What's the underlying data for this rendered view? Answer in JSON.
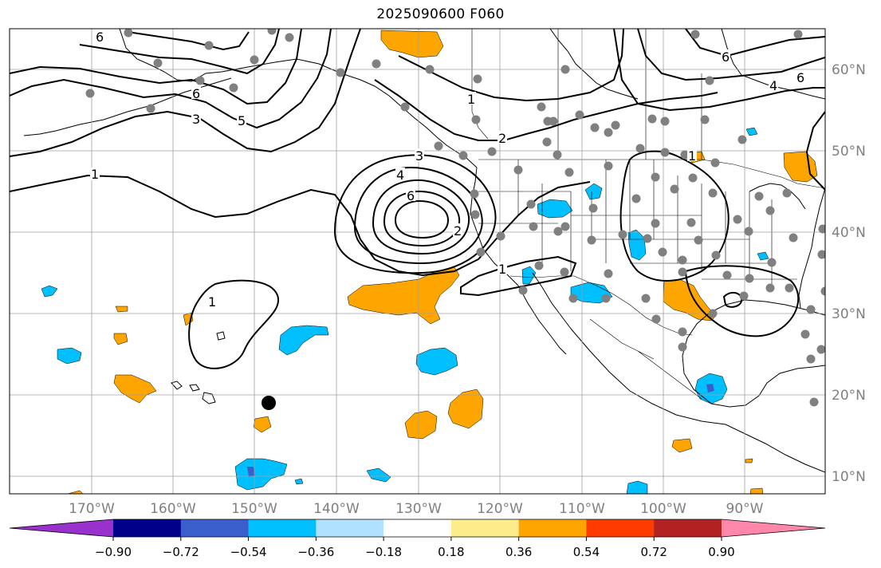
{
  "title": "2025090600 F060",
  "map": {
    "projection": "PlateCarree",
    "lon_range": [
      -178,
      -78
    ],
    "lat_range": [
      8,
      65
    ],
    "grid": true,
    "lon_ticks": [
      "170°W",
      "160°W",
      "150°W",
      "140°W",
      "130°W",
      "120°W",
      "110°W",
      "100°W",
      "90°W"
    ],
    "lat_ticks": [
      "60°N",
      "50°N",
      "40°N",
      "30°N",
      "20°N",
      "10°N"
    ],
    "contour_labels": [
      "1",
      "3",
      "5",
      "6",
      "6",
      "1",
      "2",
      "3",
      "4",
      "6",
      "2",
      "1",
      "1",
      "1",
      "6",
      "4",
      "6"
    ],
    "colors": {
      "positive_shade": "#ffa500",
      "negative_shade": "#00bfff",
      "strong_negative_shade": "#3a5fcd",
      "station_dot": "#808080",
      "contour": "#000000",
      "grid": "#a0a0a0"
    },
    "marker_icon": "black-dot-marker"
  },
  "colorbar": {
    "colors": [
      "#9932cc",
      "#00008b",
      "#3a5fcd",
      "#00bfff",
      "#b0e2ff",
      "#ffffff",
      "#fdec8a",
      "#ffa500",
      "#ff3c00",
      "#b22222",
      "#ff88aa"
    ],
    "tick_labels": [
      "−0.90",
      "−0.72",
      "−0.54",
      "−0.36",
      "−0.18",
      "0.18",
      "0.36",
      "0.54",
      "0.72",
      "0.90"
    ],
    "extend": "both"
  }
}
